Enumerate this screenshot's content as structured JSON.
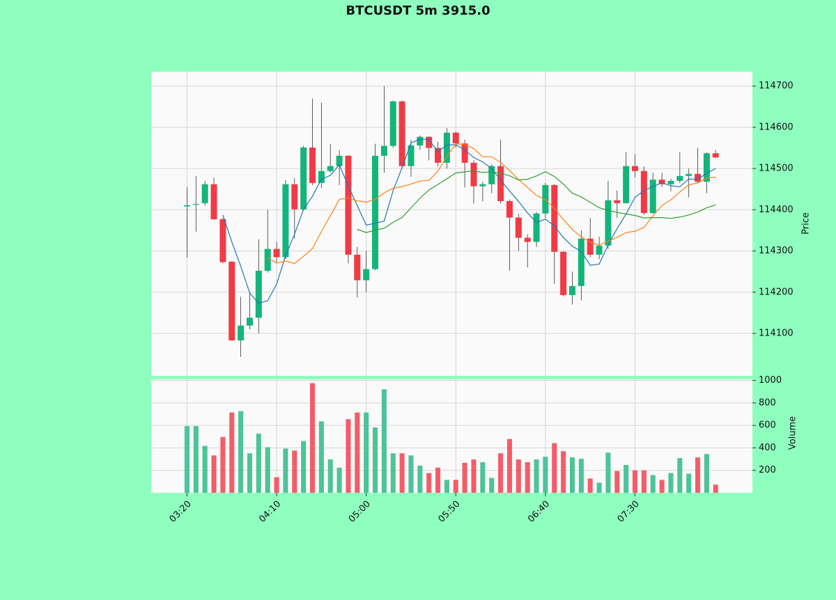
{
  "chart_data": {
    "type": "candlestick",
    "title": "BTCUSDT 5m 3915.0",
    "categories": [
      "03:20",
      null,
      null,
      null,
      null,
      null,
      null,
      null,
      null,
      null,
      "04:10",
      null,
      null,
      null,
      null,
      null,
      null,
      null,
      null,
      null,
      "05:00",
      null,
      null,
      null,
      null,
      null,
      null,
      null,
      null,
      null,
      "05:50",
      null,
      null,
      null,
      null,
      null,
      null,
      null,
      null,
      null,
      "06:40",
      null,
      null,
      null,
      null,
      null,
      null,
      null,
      null,
      null,
      "07:30",
      null,
      null,
      null,
      null,
      null,
      null,
      null,
      null,
      null
    ],
    "xlim": [
      -4,
      63.1
    ],
    "open": [
      114408,
      114412,
      114416,
      114462,
      114377,
      114274,
      114083,
      114119,
      114138,
      114252,
      114305,
      114285,
      114462,
      114401,
      114551,
      114465,
      114494,
      114506,
      114531,
      114291,
      114229,
      114256,
      114531,
      114555,
      114663,
      114506,
      114556,
      114577,
      114550,
      114514,
      114587,
      114561,
      114514,
      114457,
      114462,
      114506,
      114421,
      114381,
      114332,
      114322,
      114391,
      114460,
      114298,
      114193,
      114215,
      114330,
      114291,
      114313,
      114423,
      114416,
      114506,
      114494,
      114392,
      114473,
      114462,
      114470,
      114482,
      114487,
      114468,
      114537
    ],
    "high": [
      114455,
      114482,
      114470,
      114478,
      114380,
      114275,
      114189,
      114200,
      114328,
      114400,
      114322,
      114472,
      114477,
      114555,
      114670,
      114660,
      114560,
      114545,
      114533,
      114310,
      114300,
      114560,
      114700,
      114665,
      114665,
      114570,
      114580,
      114578,
      114565,
      114598,
      114590,
      114570,
      114520,
      114468,
      114510,
      114570,
      114425,
      114390,
      114340,
      114395,
      114465,
      114462,
      114300,
      114250,
      114350,
      114380,
      114335,
      114470,
      114447,
      114540,
      114535,
      114505,
      114490,
      114490,
      114475,
      114540,
      114500,
      114550,
      114540,
      114545
    ],
    "low": [
      114284,
      114347,
      114410,
      114375,
      114270,
      114082,
      114043,
      114110,
      114100,
      114248,
      114272,
      114280,
      114330,
      114398,
      114460,
      114453,
      114490,
      114460,
      114270,
      114187,
      114200,
      114253,
      114490,
      114550,
      114500,
      114480,
      114545,
      114520,
      114505,
      114500,
      114550,
      114454,
      114415,
      114420,
      114440,
      114415,
      114252,
      114300,
      114260,
      114310,
      114380,
      114220,
      114190,
      114170,
      114180,
      114285,
      114280,
      114305,
      114380,
      114415,
      114478,
      114387,
      114390,
      114455,
      114445,
      114465,
      114430,
      114465,
      114440,
      114525
    ],
    "close": [
      114411,
      114414,
      114462,
      114377,
      114273,
      114083,
      114119,
      114138,
      114252,
      114305,
      114285,
      114462,
      114401,
      114551,
      114465,
      114494,
      114506,
      114531,
      114291,
      114229,
      114256,
      114531,
      114555,
      114663,
      114506,
      114556,
      114577,
      114550,
      114514,
      114587,
      114561,
      114514,
      114457,
      114462,
      114506,
      114421,
      114381,
      114332,
      114322,
      114391,
      114460,
      114298,
      114193,
      114215,
      114330,
      114291,
      114313,
      114423,
      114416,
      114506,
      114494,
      114392,
      114473,
      114462,
      114470,
      114482,
      114487,
      114468,
      114537,
      114527
    ],
    "up_color": "#13b57a",
    "down_color": "#f23a45",
    "wick_color": "#333333",
    "ylim": [
      113997,
      114735
    ],
    "yticks": [
      114100,
      114200,
      114300,
      114400,
      114500,
      114600,
      114700
    ],
    "ylabel": "Price",
    "grid": true,
    "moving_averages": [
      {
        "color": "#1f77b4",
        "values": [
          null,
          null,
          null,
          null,
          114387.4,
          114321.8,
          114262.8,
          114198,
          114173,
          114179.4,
          114219.8,
          114288.4,
          114341,
          114400.8,
          114432.8,
          114474.6,
          114483.4,
          114509.4,
          114457.4,
          114410.2,
          114362.6,
          114367.6,
          114372.4,
          114446.8,
          114502.2,
          114562.2,
          114571.4,
          114570.4,
          114540.6,
          114556.8,
          114557.8,
          114545.2,
          114526.6,
          114516.2,
          114500,
          114472,
          114445.4,
          114420.4,
          114392.4,
          114369.4,
          114377.2,
          114360.6,
          114332.8,
          114311.4,
          114299.2,
          114265.4,
          114268.4,
          114314.4,
          114354.6,
          114389.8,
          114430.4,
          114446.2,
          114456.2,
          114465.4,
          114458.2,
          114455.8,
          114474.8,
          114473.8,
          114488.8,
          114500.2
        ]
      },
      {
        "color": "#ff7f0e",
        "values": [
          null,
          null,
          null,
          null,
          null,
          null,
          null,
          null,
          null,
          114283.4,
          114270.8,
          114275.6,
          114269.5,
          114286.9,
          114306.1,
          114347.2,
          114385.9,
          114425.2,
          114429.1,
          114421.5,
          114418.6,
          114425.5,
          114440.9,
          114452.1,
          114456.2,
          114462.4,
          114469.5,
          114471.4,
          114493.7,
          114529.5,
          114560,
          114558.3,
          114548.5,
          114528.4,
          114528.4,
          114514.9,
          114495.3,
          114473.5,
          114454.3,
          114434.7,
          114424.6,
          114403,
          114376.6,
          114351.9,
          114334.3,
          114321.3,
          114314.5,
          114323.6,
          114333,
          114344.5,
          114347.9,
          114357.3,
          114385.3,
          114410,
          114424,
          114443.1,
          114460.5,
          114465,
          114477.1,
          114479.2
        ]
      },
      {
        "color": "#2ca02c",
        "values": [
          null,
          null,
          null,
          null,
          null,
          null,
          null,
          null,
          null,
          null,
          null,
          null,
          null,
          null,
          null,
          null,
          null,
          null,
          null,
          114352.45,
          114344.7,
          114350.55,
          114355.2,
          114369.5,
          114381.15,
          114404.8,
          114427.7,
          114448.3,
          114461.4,
          114475.5,
          114489.3,
          114491.9,
          114494.7,
          114490.25,
          114492.3,
          114488.65,
          114482.4,
          114472.45,
          114474,
          114482.1,
          114492.3,
          114480.65,
          114462.55,
          114440.15,
          114431.35,
          114418.1,
          114404.9,
          114398.55,
          114393.65,
          114389.6,
          114386.25,
          114380.15,
          114380.95,
          114380.95,
          114379.15,
          114382.2,
          114387.5,
          114394.3,
          114405.05,
          114411.85
        ]
      }
    ],
    "volume": {
      "values": [
        594,
        594,
        418,
        333,
        497,
        715,
        727,
        352,
        527,
        406,
        139,
        394,
        376,
        461,
        976,
        636,
        297,
        224,
        655,
        715,
        715,
        582,
        921,
        352,
        352,
        333,
        242,
        176,
        224,
        115,
        115,
        267,
        297,
        273,
        133,
        352,
        479,
        297,
        273,
        297,
        321,
        442,
        370,
        315,
        303,
        127,
        91,
        358,
        194,
        248,
        200,
        200,
        158,
        115,
        176,
        309,
        170,
        315,
        345,
        73
      ],
      "up_color": "#4cc498",
      "down_color": "#f45d68",
      "ylim": [
        0,
        1010
      ],
      "yticks": [
        200,
        400,
        600,
        800,
        1000
      ],
      "ylabel": "Volume"
    }
  }
}
